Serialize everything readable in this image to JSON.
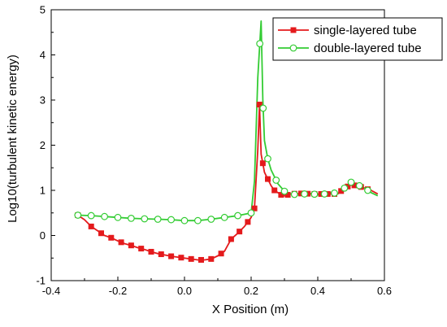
{
  "chart_data": {
    "type": "line",
    "title": "",
    "xlabel": "X Position (m)",
    "ylabel": "Log10(turbulent kinetic energy)",
    "xlim": [
      -0.4,
      0.6
    ],
    "ylim": [
      -1,
      5
    ],
    "x_ticks": [
      "-0.4",
      "-0.2",
      "0.0",
      "0.2",
      "0.4",
      "0.6"
    ],
    "y_ticks": [
      "-1",
      "0",
      "1",
      "2",
      "3",
      "4",
      "5"
    ],
    "grid": false,
    "legend_position": "top-right",
    "series": [
      {
        "name": "single-layered tube",
        "color": "#e41a1c",
        "marker": "filled-square",
        "x": [
          -0.32,
          -0.3,
          -0.28,
          -0.26,
          -0.24,
          -0.22,
          -0.2,
          -0.18,
          -0.16,
          -0.14,
          -0.12,
          -0.1,
          -0.08,
          -0.06,
          -0.04,
          -0.02,
          0.0,
          0.02,
          0.04,
          0.06,
          0.08,
          0.1,
          0.12,
          0.14,
          0.16,
          0.18,
          0.2,
          0.21,
          0.22,
          0.225,
          0.23,
          0.24,
          0.25,
          0.26,
          0.27,
          0.28,
          0.29,
          0.3,
          0.32,
          0.34,
          0.36,
          0.38,
          0.4,
          0.42,
          0.44,
          0.46,
          0.48,
          0.5,
          0.52,
          0.54,
          0.56,
          0.58
        ],
        "y": [
          0.45,
          0.35,
          0.2,
          0.1,
          0.0,
          -0.05,
          -0.12,
          -0.18,
          -0.22,
          -0.27,
          -0.31,
          -0.36,
          -0.4,
          -0.43,
          -0.46,
          -0.48,
          -0.5,
          -0.52,
          -0.54,
          -0.54,
          -0.52,
          -0.45,
          -0.35,
          -0.08,
          0.05,
          0.2,
          0.4,
          0.6,
          1.9,
          2.9,
          1.8,
          1.4,
          1.25,
          1.1,
          1.0,
          0.95,
          0.9,
          0.88,
          0.92,
          0.93,
          0.93,
          0.92,
          0.92,
          0.92,
          0.92,
          0.92,
          1.05,
          1.12,
          1.1,
          1.05,
          1.0,
          0.92
        ]
      },
      {
        "name": "double-layered tube",
        "color": "#33cc33",
        "marker": "open-circle",
        "x": [
          -0.32,
          -0.28,
          -0.24,
          -0.2,
          -0.16,
          -0.12,
          -0.08,
          -0.04,
          0.0,
          0.04,
          0.08,
          0.12,
          0.16,
          0.2,
          0.21,
          0.22,
          0.23,
          0.235,
          0.24,
          0.25,
          0.26,
          0.28,
          0.3,
          0.32,
          0.34,
          0.36,
          0.38,
          0.4,
          0.42,
          0.44,
          0.46,
          0.48,
          0.5,
          0.52,
          0.54,
          0.56,
          0.58
        ],
        "y": [
          0.45,
          0.44,
          0.42,
          0.4,
          0.38,
          0.37,
          0.36,
          0.35,
          0.33,
          0.33,
          0.36,
          0.4,
          0.44,
          0.5,
          1.2,
          3.5,
          4.75,
          3.0,
          2.1,
          1.7,
          1.45,
          1.15,
          0.98,
          0.92,
          0.9,
          0.92,
          0.93,
          0.9,
          0.92,
          0.95,
          0.93,
          1.05,
          1.18,
          1.12,
          1.05,
          0.95,
          0.88
        ]
      }
    ],
    "marker_x": {
      "single-layered tube": [
        -0.32,
        -0.28,
        -0.25,
        -0.22,
        -0.19,
        -0.16,
        -0.13,
        -0.1,
        -0.07,
        -0.04,
        -0.01,
        0.02,
        0.05,
        0.08,
        0.11,
        0.14,
        0.165,
        0.19,
        0.21,
        0.225,
        0.235,
        0.25,
        0.27,
        0.29,
        0.31,
        0.33,
        0.35,
        0.37,
        0.39,
        0.41,
        0.43,
        0.45,
        0.47,
        0.49,
        0.51,
        0.53,
        0.55
      ],
      "double-layered tube": [
        -0.32,
        -0.28,
        -0.24,
        -0.2,
        -0.16,
        -0.12,
        -0.08,
        -0.04,
        0.0,
        0.04,
        0.08,
        0.12,
        0.16,
        0.2,
        0.226,
        0.236,
        0.25,
        0.275,
        0.3,
        0.33,
        0.36,
        0.39,
        0.42,
        0.45,
        0.48,
        0.5,
        0.525,
        0.55
      ]
    }
  }
}
